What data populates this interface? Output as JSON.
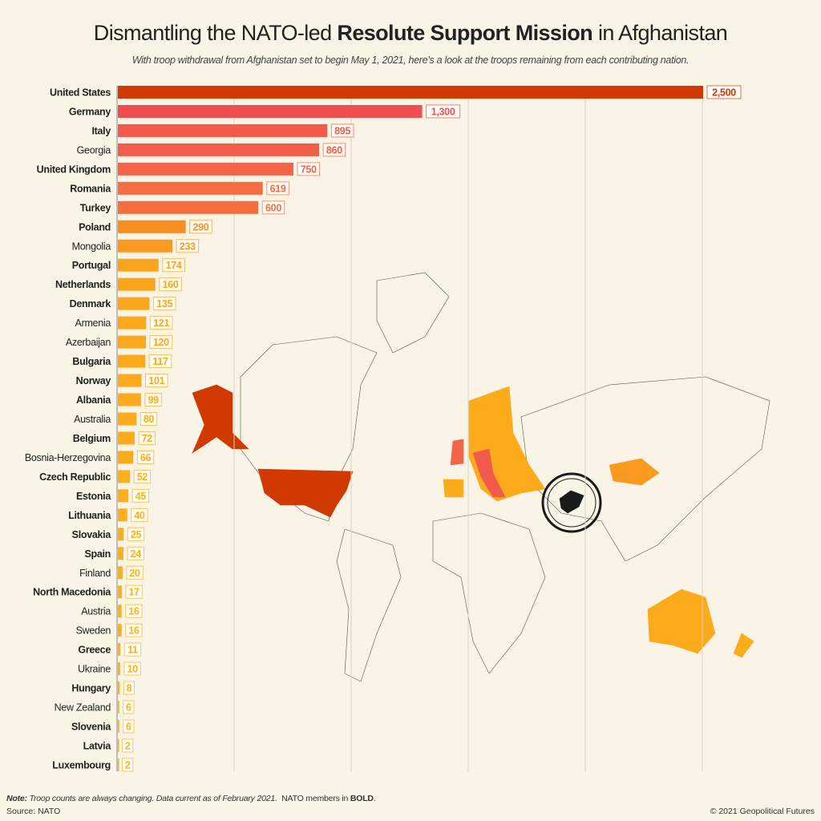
{
  "title": {
    "pre": "Dismantling the NATO-led ",
    "bold": "Resolute Support Mission",
    "post": " in Afghanistan"
  },
  "subtitle": "With troop withdrawal from Afghanistan set to begin May 1, 2021, here’s a look at the troops remaining from each contributing nation.",
  "footer": {
    "note_label": "Note:",
    "note_text": " Troop counts are always changing. Data current as of February 2021.",
    "note_members": "  NATO members in ",
    "note_bold": "BOLD",
    "note_end": ".",
    "source": "Source: NATO",
    "copyright": "© 2021 Geopolitical Futures"
  },
  "chart_data": {
    "type": "bar",
    "orientation": "horizontal",
    "xlim": [
      0,
      2500
    ],
    "grid_step": 500,
    "grid": true,
    "categories": [
      "United States",
      "Germany",
      "Italy",
      "Georgia",
      "United Kingdom",
      "Romania",
      "Turkey",
      "Poland",
      "Mongolia",
      "Portugal",
      "Netherlands",
      "Denmark",
      "Armenia",
      "Azerbaijan",
      "Bulgaria",
      "Norway",
      "Albania",
      "Australia",
      "Belgium",
      "Bosnia-Herzegovina",
      "Czech Republic",
      "Estonia",
      "Lithuania",
      "Slovakia",
      "Spain",
      "Finland",
      "North Macedonia",
      "Austria",
      "Sweden",
      "Greece",
      "Ukraine",
      "Hungary",
      "New Zealand",
      "Slovenia",
      "Latvia",
      "Luxembourg"
    ],
    "values": [
      2500,
      1300,
      895,
      860,
      750,
      619,
      600,
      290,
      233,
      174,
      160,
      135,
      121,
      120,
      117,
      101,
      99,
      80,
      72,
      66,
      52,
      45,
      40,
      25,
      24,
      20,
      17,
      16,
      16,
      11,
      10,
      8,
      6,
      6,
      2,
      2
    ],
    "value_labels": [
      "2,500",
      "1,300",
      "895",
      "860",
      "750",
      "619",
      "600",
      "290",
      "233",
      "174",
      "160",
      "135",
      "121",
      "120",
      "117",
      "101",
      "99",
      "80",
      "72",
      "66",
      "52",
      "45",
      "40",
      "25",
      "24",
      "20",
      "17",
      "16",
      "16",
      "11",
      "10",
      "8",
      "6",
      "6",
      "2",
      "2"
    ],
    "nato_member": [
      true,
      true,
      true,
      false,
      true,
      true,
      true,
      true,
      false,
      true,
      true,
      true,
      false,
      false,
      true,
      true,
      true,
      false,
      true,
      false,
      true,
      true,
      true,
      true,
      true,
      false,
      true,
      false,
      false,
      true,
      false,
      true,
      false,
      true,
      true,
      true
    ],
    "colors": [
      "#d03a00",
      "#ef4d50",
      "#f25a4b",
      "#f35e4a",
      "#f46548",
      "#f56d40",
      "#f56e40",
      "#f98f22",
      "#fb9a20",
      "#fca41c",
      "#fca41c",
      "#fca61b",
      "#fca81b",
      "#fca81b",
      "#fca81b",
      "#fcaa1b",
      "#fcaa1b",
      "#fcac1b",
      "#fcac1b",
      "#fcac1b",
      "#fcae1b",
      "#fcae1b",
      "#fcae1b",
      "#fdb01b",
      "#fdb01b",
      "#fdb01b",
      "#fdb21b",
      "#fdb21b",
      "#fdb21b",
      "#fdb21b",
      "#fdb21b",
      "#fdb41b",
      "#fdb41b",
      "#fdb41b",
      "#fdb41b",
      "#fdb41b"
    ],
    "map_highlight_colors": {
      "united_states": "#d03a00",
      "afghanistan": "#1a1a1a",
      "australia": "#fcab1a",
      "mongolia": "#fb9a20"
    }
  }
}
